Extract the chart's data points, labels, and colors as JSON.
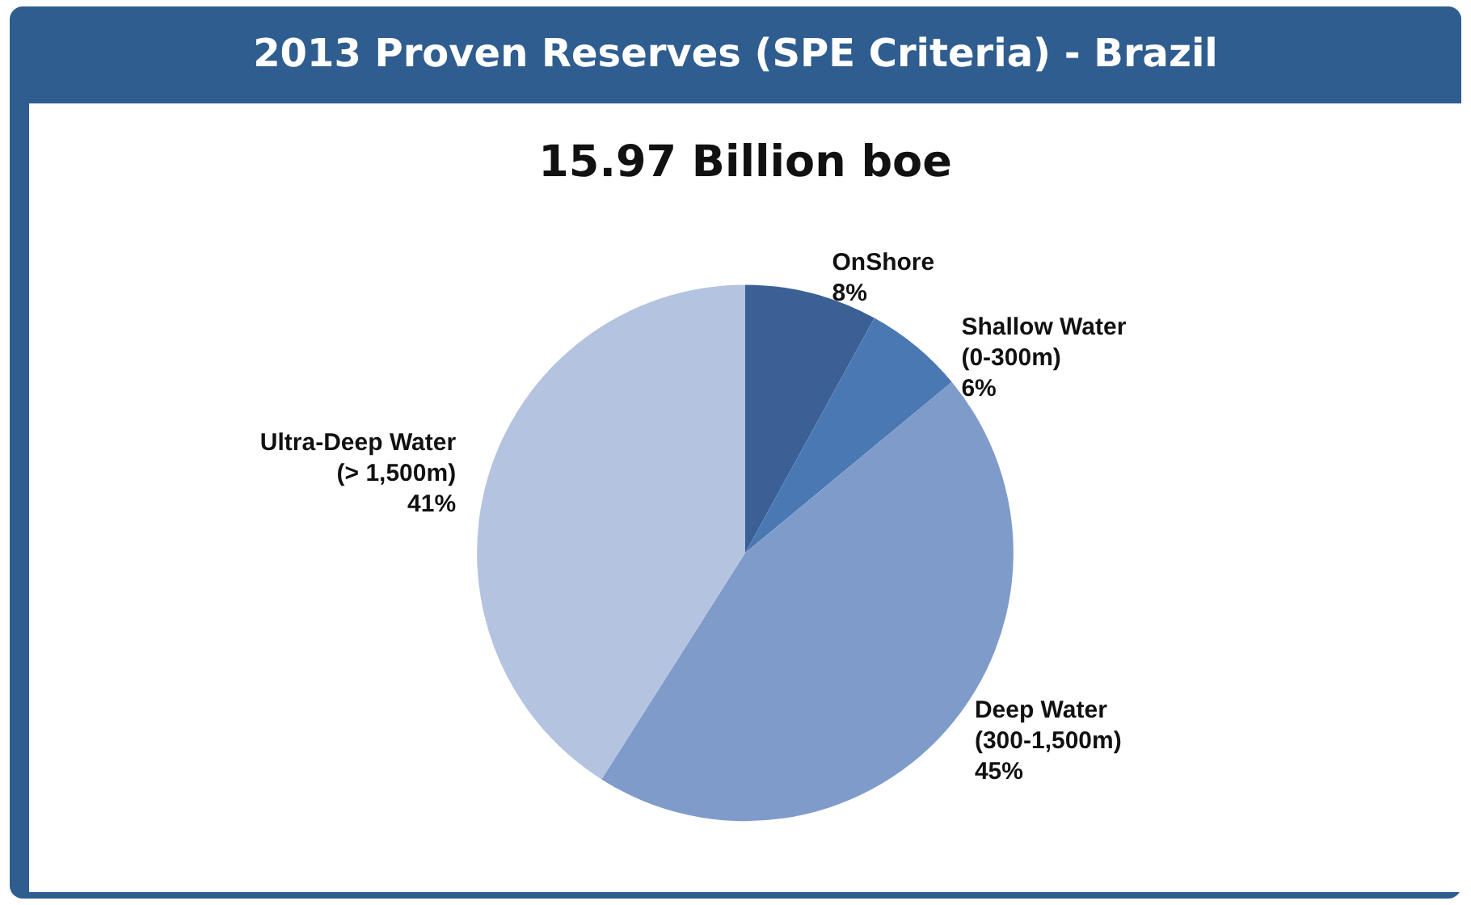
{
  "chart_data": {
    "type": "pie",
    "title": "2013 Proven Reserves (SPE Criteria) - Brazil",
    "subtitle": "15.97 Billion boe",
    "categories": [
      "OnShore",
      "Shallow Water (0-300m)",
      "Deep Water (300-1,500m)",
      "Ultra-Deep Water (> 1,500m)"
    ],
    "values": [
      8,
      6,
      45,
      41
    ],
    "colors": [
      "#3b6096",
      "#4a78b3",
      "#7e9bca",
      "#b4c3e0"
    ],
    "value_labels": [
      "8%",
      "6%",
      "45%",
      "41%"
    ],
    "legend": false
  }
}
